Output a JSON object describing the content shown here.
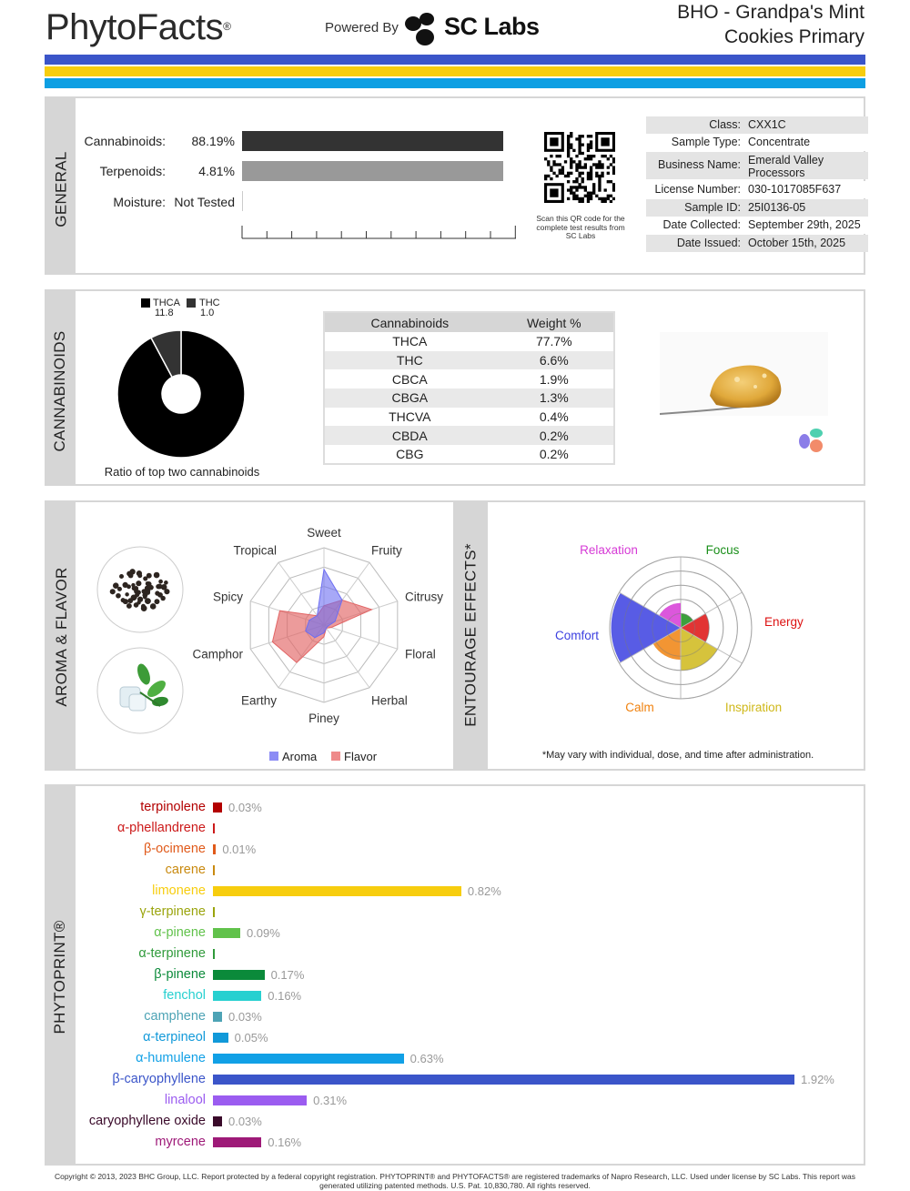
{
  "header": {
    "brand": "PhytoFacts",
    "powered_by": "Powered By",
    "lab": "SC Labs",
    "title_line1": "BHO - Grandpa's Mint",
    "title_line2": "Cookies Primary",
    "stripe_colors": [
      "#3b55c9",
      "#f7cd0e",
      "#0d9fe3"
    ]
  },
  "general": {
    "label": "GENERAL",
    "rows": [
      {
        "name": "Cannabinoids:",
        "value": "88.19%",
        "fraction": 0.8819
      },
      {
        "name": "Terpenoids:",
        "value": "4.81%",
        "fraction": 0.0481
      },
      {
        "name": "Moisture:",
        "value": "Not Tested"
      }
    ],
    "qr_caption": "Scan this QR code for the complete test results from SC Labs",
    "info": [
      {
        "k": "Class:",
        "v": "CXX1C"
      },
      {
        "k": "Sample Type:",
        "v": "Concentrate"
      },
      {
        "k": "Business Name:",
        "v": "Emerald Valley Processors"
      },
      {
        "k": "License Number:",
        "v": "030-1017085F637"
      },
      {
        "k": "Sample ID:",
        "v": "25I0136-05"
      },
      {
        "k": "Date Collected:",
        "v": "September 29th, 2025"
      },
      {
        "k": "Date Issued:",
        "v": "October 15th, 2025"
      }
    ]
  },
  "cannabinoids": {
    "label": "CANNABINOIDS",
    "legend": [
      {
        "name": "THCA",
        "value": "11.8",
        "color": "#000000"
      },
      {
        "name": "THC",
        "value": "1.0",
        "color": "#333333"
      }
    ],
    "caption": "Ratio of top two cannabinoids",
    "table_headers": [
      "Cannabinoids",
      "Weight %"
    ],
    "table": [
      [
        "THCA",
        "77.7%"
      ],
      [
        "THC",
        "6.6%"
      ],
      [
        "CBCA",
        "1.9%"
      ],
      [
        "CBGA",
        "1.3%"
      ],
      [
        "THCVA",
        "0.4%"
      ],
      [
        "CBDA",
        "0.2%"
      ],
      [
        "CBG",
        "0.2%"
      ]
    ]
  },
  "aroma": {
    "label": "AROMA & FLAVOR",
    "axes": [
      "Sweet",
      "Fruity",
      "Citrusy",
      "Floral",
      "Herbal",
      "Piney",
      "Earthy",
      "Camphor",
      "Spicy",
      "Tropical"
    ],
    "aroma_values": [
      0.72,
      0.4,
      0.15,
      0.05,
      0.05,
      0.1,
      0.2,
      0.25,
      0.2,
      0.15
    ],
    "flavor_values": [
      0.25,
      0.4,
      0.65,
      0.1,
      0.05,
      0.15,
      0.6,
      0.7,
      0.6,
      0.15
    ],
    "legend_aroma": "Aroma",
    "legend_flavor": "Flavor",
    "aroma_color": "#6d6ef2",
    "flavor_color": "#e26565"
  },
  "entourage": {
    "label": "ENTOURAGE EFFECTS*",
    "effects": [
      {
        "name": "Focus",
        "value": 0.2,
        "color": "#1a8f1a"
      },
      {
        "name": "Energy",
        "value": 0.4,
        "color": "#dd1111"
      },
      {
        "name": "Inspiration",
        "value": 0.6,
        "color": "#cfb81a"
      },
      {
        "name": "Calm",
        "value": 0.45,
        "color": "#f0820f"
      },
      {
        "name": "Comfort",
        "value": 0.98,
        "color": "#3b3fe0"
      },
      {
        "name": "Relaxation",
        "value": 0.35,
        "color": "#d63ad6"
      }
    ],
    "note": "*May vary with individual, dose, and time after administration."
  },
  "phytoprint": {
    "label": "PHYTOPRINT®",
    "max": 1.92,
    "terpenes": [
      {
        "name": "terpinolene",
        "value": 0.03,
        "label": "0.03%",
        "color": "#b30000"
      },
      {
        "name": "α-phellandrene",
        "value": 0.0,
        "label": "",
        "color": "#cc1a1a"
      },
      {
        "name": "β-ocimene",
        "value": 0.01,
        "label": "0.01%",
        "color": "#e05a1a"
      },
      {
        "name": "carene",
        "value": 0.0,
        "label": "",
        "color": "#c98a10"
      },
      {
        "name": "limonene",
        "value": 0.82,
        "label": "0.82%",
        "color": "#f7cd0e"
      },
      {
        "name": "γ-terpinene",
        "value": 0.0,
        "label": "",
        "color": "#9aa40c"
      },
      {
        "name": "α-pinene",
        "value": 0.09,
        "label": "0.09%",
        "color": "#61c24b"
      },
      {
        "name": "α-terpinene",
        "value": 0.0,
        "label": "",
        "color": "#2f9a3a"
      },
      {
        "name": "β-pinene",
        "value": 0.17,
        "label": "0.17%",
        "color": "#0b8a3a"
      },
      {
        "name": "fenchol",
        "value": 0.16,
        "label": "0.16%",
        "color": "#27d0d0"
      },
      {
        "name": "camphene",
        "value": 0.03,
        "label": "0.03%",
        "color": "#4da3b5"
      },
      {
        "name": "α-terpineol",
        "value": 0.05,
        "label": "0.05%",
        "color": "#1199d9"
      },
      {
        "name": "α-humulene",
        "value": 0.63,
        "label": "0.63%",
        "color": "#11a0e6"
      },
      {
        "name": "β-caryophyllene",
        "value": 1.92,
        "label": "1.92%",
        "color": "#3b55c9"
      },
      {
        "name": "linalool",
        "value": 0.31,
        "label": "0.31%",
        "color": "#9b5cf0"
      },
      {
        "name": "caryophyllene oxide",
        "value": 0.03,
        "label": "0.03%",
        "color": "#3a0a2a"
      },
      {
        "name": "myrcene",
        "value": 0.16,
        "label": "0.16%",
        "color": "#9e1a78"
      }
    ]
  },
  "footer": "Copyright © 2013, 2023 BHC Group, LLC. Report protected by a federal copyright registration. PHYTOPRINT® and PHYTOFACTS® are registered trademarks of Napro Research, LLC. Used under license by SC Labs. This report was generated utilizing patented methods. U.S. Pat. 10,830,780. All rights reserved."
}
